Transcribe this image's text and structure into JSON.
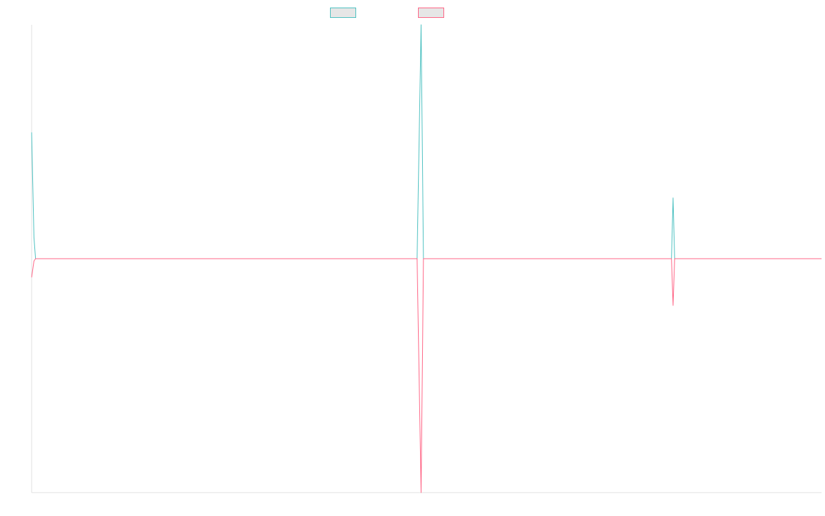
{
  "colors": {
    "series_a": "#4bc0c0",
    "series_b": "#ff6384",
    "axis": "#e0e0e0"
  },
  "legend": [
    {
      "name": "",
      "color": "#4bc0c0"
    },
    {
      "name": "",
      "color": "#ff6384"
    }
  ],
  "chart_data": {
    "type": "line",
    "title": "",
    "xlabel": "",
    "ylabel": "",
    "grid": false,
    "legend_position": "top-center",
    "xlim": [
      0,
      100
    ],
    "ylim": [
      -100,
      100
    ],
    "series": [
      {
        "color": "#4bc0c0",
        "points": [
          [
            0,
            54
          ],
          [
            0.3,
            9
          ],
          [
            0.5,
            0
          ],
          [
            48.8,
            0
          ],
          [
            49.3,
            100
          ],
          [
            49.6,
            0
          ],
          [
            81.0,
            0
          ],
          [
            81.2,
            26
          ],
          [
            81.4,
            0
          ],
          [
            100,
            0
          ]
        ]
      },
      {
        "color": "#ff6384",
        "points": [
          [
            0,
            -8
          ],
          [
            0.3,
            -1
          ],
          [
            0.5,
            0
          ],
          [
            48.8,
            0
          ],
          [
            49.3,
            -100
          ],
          [
            49.6,
            0
          ],
          [
            81.0,
            0
          ],
          [
            81.2,
            -20
          ],
          [
            81.4,
            0
          ],
          [
            100,
            0
          ]
        ]
      }
    ]
  }
}
